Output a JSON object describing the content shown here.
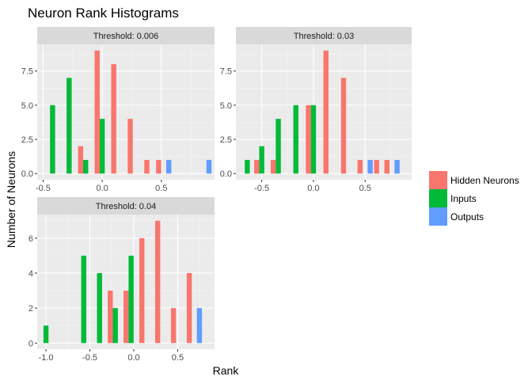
{
  "chart_data": {
    "type": "bar",
    "title": "Neuron Rank Histograms",
    "xlabel": "Rank",
    "ylabel": "Number of Neurons",
    "legend": {
      "position": "right"
    },
    "series_colors": {
      "Hidden Neurons": "#F8766D",
      "Inputs": "#00BA38",
      "Outputs": "#619CFF"
    },
    "series_names": [
      "Hidden Neurons",
      "Inputs",
      "Outputs"
    ],
    "panels": [
      {
        "strip": "Threshold: 0.006",
        "xlim": [
          -0.55,
          0.95
        ],
        "ylim": [
          -0.45,
          9.45
        ],
        "xticks": [
          -0.5,
          0.0,
          0.5
        ],
        "xtick_labels": [
          "-0.5",
          "0.0",
          "0.5"
        ],
        "yticks": [
          0,
          2.5,
          5,
          7.5
        ],
        "ytick_labels": [
          "0.0",
          "2.5",
          "5.0",
          "7.5"
        ],
        "bins": [
          {
            "x": -0.42,
            "counts": [
              0,
              5,
              0
            ]
          },
          {
            "x": -0.28,
            "counts": [
              0,
              7,
              0
            ]
          },
          {
            "x": -0.14,
            "counts": [
              2,
              1,
              0
            ]
          },
          {
            "x": 0.0,
            "counts": [
              9,
              4,
              0
            ]
          },
          {
            "x": 0.14,
            "counts": [
              8,
              0,
              0
            ]
          },
          {
            "x": 0.28,
            "counts": [
              4,
              0,
              0
            ]
          },
          {
            "x": 0.42,
            "counts": [
              1,
              0,
              0
            ]
          },
          {
            "x": 0.52,
            "counts": [
              1,
              0,
              1
            ]
          },
          {
            "x": 0.86,
            "counts": [
              0,
              0,
              1
            ]
          }
        ]
      },
      {
        "strip": "Threshold: 0.03",
        "xlim": [
          -0.75,
          0.95
        ],
        "ylim": [
          -0.45,
          9.45
        ],
        "xticks": [
          -0.5,
          0.0,
          0.5
        ],
        "xtick_labels": [
          "-0.5",
          "0.0",
          "0.5"
        ],
        "yticks": [
          0,
          2.5,
          5,
          7.5
        ],
        "ytick_labels": [
          "0.0",
          "2.5",
          "5.0",
          "7.5"
        ],
        "bins": [
          {
            "x": -0.64,
            "counts": [
              0,
              1,
              0
            ]
          },
          {
            "x": -0.5,
            "counts": [
              1,
              2,
              0
            ]
          },
          {
            "x": -0.34,
            "counts": [
              1,
              4,
              0
            ]
          },
          {
            "x": -0.17,
            "counts": [
              0,
              5,
              0
            ]
          },
          {
            "x": 0.0,
            "counts": [
              5,
              5,
              0
            ]
          },
          {
            "x": 0.17,
            "counts": [
              9,
              0,
              0
            ]
          },
          {
            "x": 0.34,
            "counts": [
              7,
              0,
              0
            ]
          },
          {
            "x": 0.5,
            "counts": [
              1,
              0,
              1
            ]
          },
          {
            "x": 0.66,
            "counts": [
              1,
              0,
              0
            ]
          },
          {
            "x": 0.76,
            "counts": [
              1,
              0,
              1
            ]
          }
        ]
      },
      {
        "strip": "Threshold: 0.04",
        "xlim": [
          -1.1,
          0.92
        ],
        "ylim": [
          -0.35,
          7.35
        ],
        "xticks": [
          -1.0,
          -0.5,
          0.0,
          0.5
        ],
        "xtick_labels": [
          "-1.0",
          "-0.5",
          "0.0",
          "0.5"
        ],
        "yticks": [
          0,
          2,
          4,
          6
        ],
        "ytick_labels": [
          "0",
          "2",
          "4",
          "6"
        ],
        "bins": [
          {
            "x": -1.0,
            "counts": [
              0,
              1,
              0
            ]
          },
          {
            "x": -0.57,
            "counts": [
              0,
              5,
              0
            ]
          },
          {
            "x": -0.39,
            "counts": [
              0,
              4,
              0
            ]
          },
          {
            "x": -0.21,
            "counts": [
              3,
              2,
              0
            ]
          },
          {
            "x": -0.03,
            "counts": [
              3,
              5,
              0
            ]
          },
          {
            "x": 0.15,
            "counts": [
              6,
              0,
              0
            ]
          },
          {
            "x": 0.33,
            "counts": [
              7,
              0,
              0
            ]
          },
          {
            "x": 0.51,
            "counts": [
              2,
              0,
              0
            ]
          },
          {
            "x": 0.69,
            "counts": [
              4,
              0,
              2
            ]
          }
        ]
      }
    ]
  }
}
